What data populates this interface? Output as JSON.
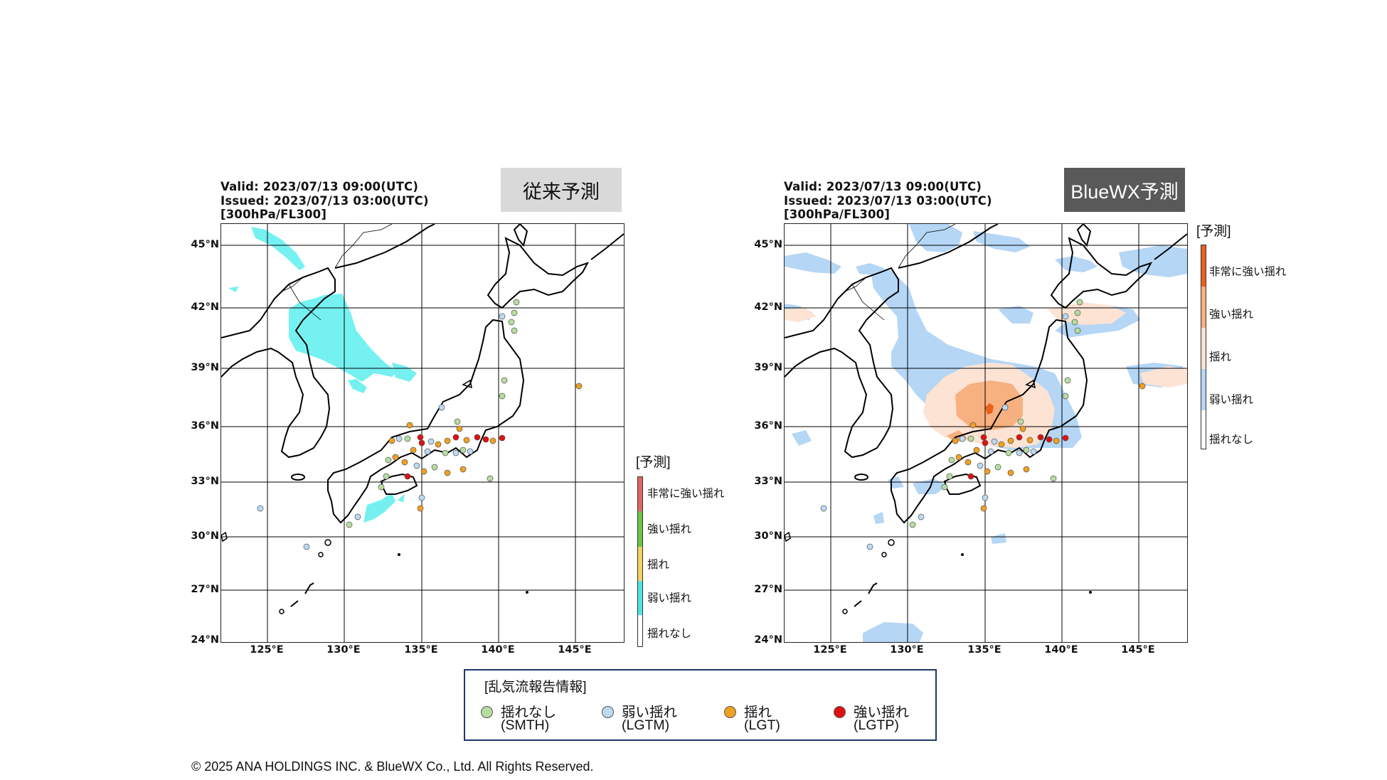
{
  "left_panel": {
    "valid": "Valid: 2023/07/13 09:00(UTC)",
    "issued": "Issued: 2023/07/13 03:00(UTC)",
    "level": "[300hPa/FL300]",
    "badge": "従来予測",
    "badge_color": "#d9d9d9"
  },
  "right_panel": {
    "valid": "Valid: 2023/07/13 09:00(UTC)",
    "issued": "Issued: 2023/07/13 03:00(UTC)",
    "level": "[300hPa/FL300]",
    "badge": "BlueWX予測",
    "badge_color": "#595959"
  },
  "axes": {
    "lat_labels": [
      "45°N",
      "42°N",
      "39°N",
      "36°N",
      "33°N",
      "30°N",
      "27°N",
      "24°N"
    ],
    "lon_labels": [
      "125°E",
      "130°E",
      "135°E",
      "140°E",
      "145°E"
    ]
  },
  "forecast_legend_left": {
    "title": "[予測]",
    "items": [
      "非常に強い揺れ",
      "強い揺れ",
      "揺れ",
      "弱い揺れ",
      "揺れなし"
    ],
    "colors": [
      "#e06666",
      "#6cc644",
      "#f4d35e",
      "#4ee6e6",
      "#ffffff"
    ]
  },
  "forecast_legend_right": {
    "title": "[予測]",
    "items": [
      "非常に強い揺れ",
      "強い揺れ",
      "揺れ",
      "弱い揺れ",
      "揺れなし"
    ],
    "colors": [
      "#e8621c",
      "#f7b07f",
      "#fde3d3",
      "#b5d6f5",
      "#ffffff"
    ]
  },
  "report_legend": {
    "title": "[乱気流報告情報]",
    "items": [
      {
        "label": "揺れなし",
        "code": "(SMTH)",
        "color": "#b7dca0"
      },
      {
        "label": "弱い揺れ",
        "code": "(LGTM)",
        "color": "#bcd9f2"
      },
      {
        "label": "揺れ",
        "code": "(LGT)",
        "color": "#f0a020"
      },
      {
        "label": "強い揺れ",
        "code": "(LGTP)",
        "color": "#e01010"
      }
    ]
  },
  "copyright": "© 2025 ANA HOLDINGS INC. & BlueWX Co., Ltd. All Rights Reserved."
}
